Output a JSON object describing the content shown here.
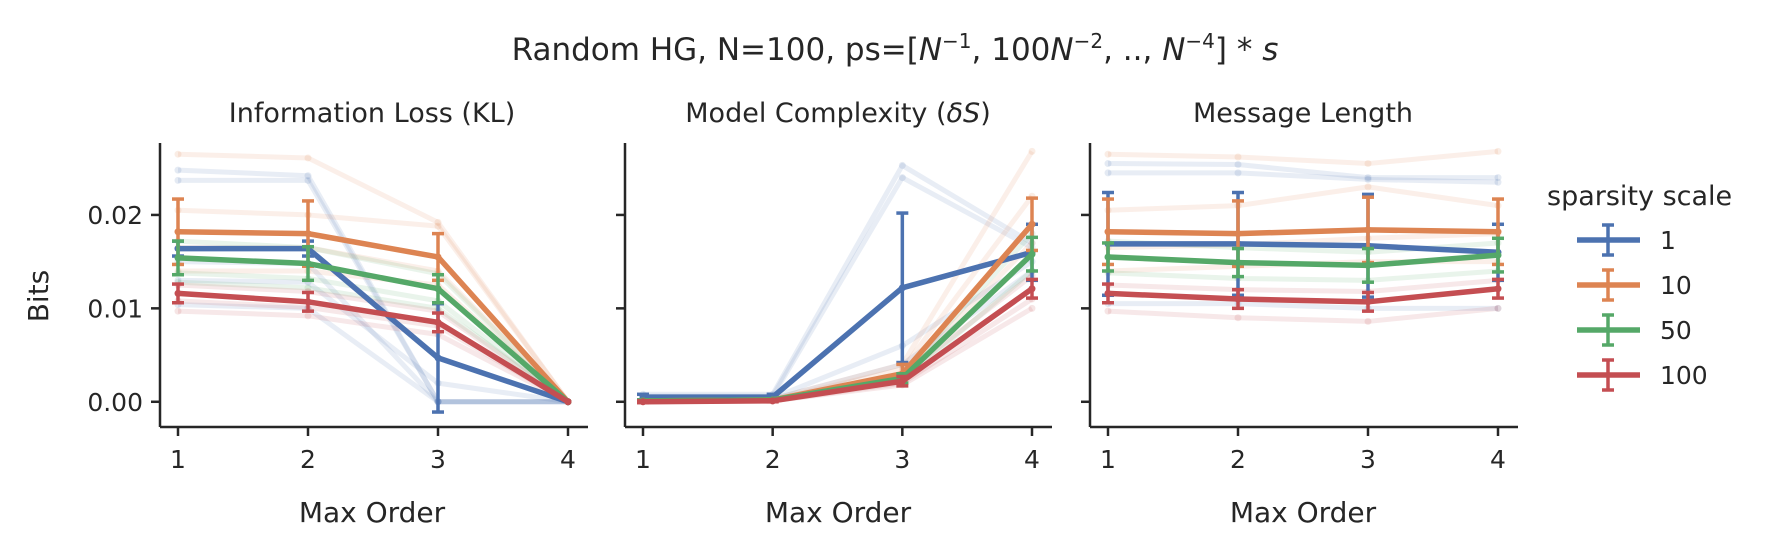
{
  "figure": {
    "title_prefix": "Random HG, N=100, ps=[",
    "title_suffix": "] * ",
    "title_math": {
      "t1_base": "N",
      "t1_exp": "−1",
      "sep1": ", ",
      "t2_coef": "100",
      "t2_base": "N",
      "t2_exp": "−2",
      "sep2": ", ..,  ",
      "t3_base": "N",
      "t3_exp": "−4",
      "s": "s"
    }
  },
  "legend": {
    "title": "sparsity scale",
    "colors": [
      "#4c72b0",
      "#dd8452",
      "#55a868",
      "#c44e52"
    ]
  },
  "chart_data": [
    {
      "type": "line",
      "title": "Information Loss (KL)",
      "xlabel": "Max Order",
      "ylabel": "Bits",
      "x": [
        1,
        2,
        3,
        4
      ],
      "xticks": [
        "1",
        "2",
        "3",
        "4"
      ],
      "ylim": [
        -0.0027,
        0.0277
      ],
      "yticks": [
        0.0,
        0.01,
        0.02
      ],
      "ytick_labels": [
        "0.00",
        "0.01",
        "0.02"
      ],
      "grid": false,
      "series": [
        {
          "name": "1",
          "color": "#4c72b0",
          "values": [
            0.0164,
            0.0164,
            0.0047,
            0.0
          ],
          "err": [
            0.0008,
            0.0008,
            0.0058,
            0.0
          ],
          "faint": [
            [
              0.0237,
              0.0237,
              0.0,
              0.0
            ],
            [
              0.0248,
              0.0242,
              0.0,
              0.0
            ],
            [
              0.0104,
              0.01,
              0.0,
              0.0
            ],
            [
              0.015,
              0.0148,
              0.0,
              0.0
            ],
            [
              0.013,
              0.0128,
              0.002,
              0.0
            ]
          ]
        },
        {
          "name": "10",
          "color": "#dd8452",
          "values": [
            0.0182,
            0.018,
            0.0155,
            0.0
          ],
          "err": [
            0.0035,
            0.0035,
            0.0025,
            0.0
          ],
          "faint": [
            [
              0.0265,
              0.0261,
              0.0192,
              0.0
            ],
            [
              0.0205,
              0.02,
              0.0188,
              0.0
            ],
            [
              0.0165,
              0.0165,
              0.014,
              0.0
            ],
            [
              0.014,
              0.014,
              0.0125,
              0.0
            ]
          ]
        },
        {
          "name": "50",
          "color": "#55a868",
          "values": [
            0.0154,
            0.0148,
            0.0121,
            0.0
          ],
          "err": [
            0.0018,
            0.0018,
            0.0015,
            0.0
          ],
          "faint": [
            [
              0.0172,
              0.0165,
              0.0137,
              0.0
            ],
            [
              0.0138,
              0.0132,
              0.0108,
              0.0
            ],
            [
              0.0128,
              0.0122,
              0.01,
              0.0
            ]
          ]
        },
        {
          "name": "100",
          "color": "#c44e52",
          "values": [
            0.0116,
            0.0107,
            0.0085,
            0.0
          ],
          "err": [
            0.001,
            0.001,
            0.001,
            0.0
          ],
          "faint": [
            [
              0.0125,
              0.0118,
              0.0097,
              0.0
            ],
            [
              0.0097,
              0.0092,
              0.0072,
              0.0
            ],
            [
              0.0108,
              0.0101,
              0.0081,
              0.0
            ]
          ]
        }
      ]
    },
    {
      "type": "line",
      "title_prefix": "Model Complexity (",
      "title_math": "δS",
      "title_suffix": ")",
      "xlabel": "Max Order",
      "x": [
        1,
        2,
        3,
        4
      ],
      "xticks": [
        "1",
        "2",
        "3",
        "4"
      ],
      "ylim": [
        -0.0027,
        0.0277
      ],
      "grid": false,
      "series": [
        {
          "name": "1",
          "color": "#4c72b0",
          "values": [
            0.0005,
            0.0005,
            0.0122,
            0.016
          ],
          "err": [
            0.0003,
            0.0003,
            0.008,
            0.003
          ],
          "faint": [
            [
              0.0008,
              0.0008,
              0.0253,
              0.017
            ],
            [
              0.0006,
              0.0006,
              0.024,
              0.0165
            ],
            [
              0.0004,
              0.0004,
              0.006,
              0.015
            ],
            [
              0.0003,
              0.0003,
              0.004,
              0.014
            ]
          ]
        },
        {
          "name": "10",
          "color": "#dd8452",
          "values": [
            0.0001,
            0.0002,
            0.003,
            0.019
          ],
          "err": [
            0.0001,
            0.0001,
            0.001,
            0.0028
          ],
          "faint": [
            [
              0.0002,
              0.0003,
              0.004,
              0.0268
            ],
            [
              0.0001,
              0.0002,
              0.0035,
              0.022
            ],
            [
              0.0001,
              0.0002,
              0.0028,
              0.017
            ]
          ]
        },
        {
          "name": "50",
          "color": "#55a868",
          "values": [
            0.0001,
            0.0002,
            0.0025,
            0.0158
          ],
          "err": [
            0.0001,
            0.0001,
            0.0005,
            0.0018
          ],
          "faint": [
            [
              0.0001,
              0.0002,
              0.003,
              0.018
            ],
            [
              0.0001,
              0.0001,
              0.0022,
              0.014
            ]
          ]
        },
        {
          "name": "100",
          "color": "#c44e52",
          "values": [
            0.0,
            0.0001,
            0.0022,
            0.0121
          ],
          "err": [
            0.0001,
            0.0001,
            0.0005,
            0.001
          ],
          "faint": [
            [
              0.0001,
              0.0001,
              0.0028,
              0.0135
            ],
            [
              0.0,
              0.0001,
              0.0018,
              0.01
            ],
            [
              0.0,
              0.0001,
              0.002,
              0.011
            ]
          ]
        }
      ]
    },
    {
      "type": "line",
      "title": "Message Length",
      "xlabel": "Max Order",
      "x": [
        1,
        2,
        3,
        4
      ],
      "xticks": [
        "1",
        "2",
        "3",
        "4"
      ],
      "ylim": [
        -0.0027,
        0.0277
      ],
      "grid": false,
      "series": [
        {
          "name": "1",
          "color": "#4c72b0",
          "values": [
            0.0169,
            0.0169,
            0.0167,
            0.016
          ],
          "err": [
            0.0055,
            0.0055,
            0.0055,
            0.003
          ],
          "faint": [
            [
              0.0255,
              0.0254,
              0.024,
              0.024
            ],
            [
              0.0245,
              0.0245,
              0.0238,
              0.0235
            ],
            [
              0.0105,
              0.0105,
              0.01,
              0.01
            ]
          ]
        },
        {
          "name": "10",
          "color": "#dd8452",
          "values": [
            0.0182,
            0.018,
            0.0184,
            0.0182
          ],
          "err": [
            0.0035,
            0.0035,
            0.0035,
            0.0035
          ],
          "faint": [
            [
              0.0265,
              0.0262,
              0.0255,
              0.0268
            ],
            [
              0.0205,
              0.021,
              0.023,
              0.021
            ],
            [
              0.0165,
              0.0168,
              0.0175,
              0.018
            ],
            [
              0.014,
              0.0145,
              0.015,
              0.015
            ]
          ]
        },
        {
          "name": "50",
          "color": "#55a868",
          "values": [
            0.0155,
            0.0149,
            0.0146,
            0.0157
          ],
          "err": [
            0.0015,
            0.0015,
            0.0018,
            0.0018
          ],
          "faint": [
            [
              0.0172,
              0.0165,
              0.016,
              0.017
            ],
            [
              0.0138,
              0.0132,
              0.013,
              0.014
            ]
          ]
        },
        {
          "name": "100",
          "color": "#c44e52",
          "values": [
            0.0116,
            0.011,
            0.0107,
            0.0121
          ],
          "err": [
            0.001,
            0.001,
            0.001,
            0.001
          ],
          "faint": [
            [
              0.0125,
              0.012,
              0.0118,
              0.013
            ],
            [
              0.0097,
              0.009,
              0.0086,
              0.01
            ]
          ]
        }
      ]
    }
  ]
}
